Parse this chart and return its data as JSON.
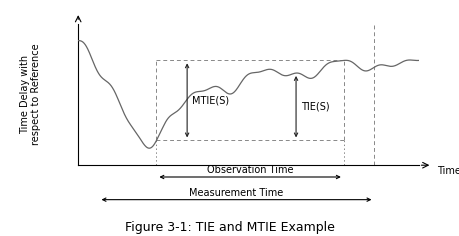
{
  "title": "Figure 3-1: TIE and MTIE Example",
  "ylabel": "Time Delay with\nrespect to Reference",
  "xlabel_time": "Time",
  "label_obs": "Observation Time",
  "label_meas": "Measurement Time",
  "label_mtie": "MTIE(S)",
  "label_tie": "TIE(S)",
  "line_color": "#666666",
  "dashed_color": "#888888",
  "arrow_color": "#222222",
  "title_fontsize": 9,
  "axis_fontsize": 7,
  "label_fontsize": 7
}
